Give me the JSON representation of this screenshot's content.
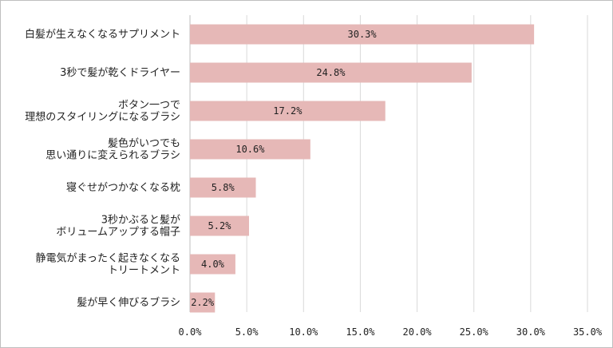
{
  "chart_data": {
    "type": "bar",
    "orientation": "horizontal",
    "title": "",
    "xlabel": "",
    "ylabel": "",
    "categories": [
      [
        "白髪が生えなくなるサプリメント"
      ],
      [
        "3秒で髪が乾くドライヤー"
      ],
      [
        "ボタン一つで",
        "理想のスタイリングになるブラシ"
      ],
      [
        "髪色がいつでも",
        "思い通りに変えられるブラシ"
      ],
      [
        "寝ぐせがつかなくなる枕"
      ],
      [
        "3秒かぶると髪が",
        "ボリュームアップする帽子"
      ],
      [
        "静電気がまったく起きなくなる",
        "トリートメント"
      ],
      [
        "髪が早く伸びるブラシ"
      ]
    ],
    "values": [
      30.3,
      24.8,
      17.2,
      10.6,
      5.8,
      5.2,
      4.0,
      2.2
    ],
    "data_labels": [
      "30.3%",
      "24.8%",
      "17.2%",
      "10.6%",
      "5.8%",
      "5.2%",
      "4.0%",
      "2.2%"
    ],
    "xlim": [
      0,
      35
    ],
    "x_ticks": [
      "0.0%",
      "5.0%",
      "10.0%",
      "15.0%",
      "20.0%",
      "25.0%",
      "30.0%",
      "35.0%"
    ],
    "grid": true,
    "legend": false,
    "bar_color": "#e6b8b7"
  }
}
